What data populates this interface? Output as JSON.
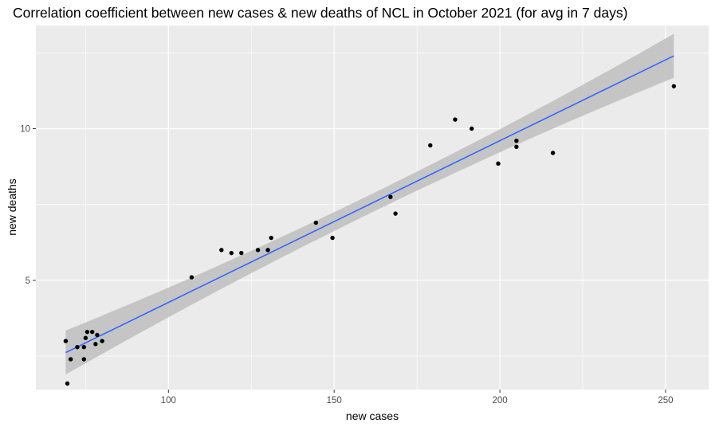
{
  "chart_data": {
    "type": "scatter",
    "title": "Correlation coefficient between new cases & new deaths of NCL in October 2021 (for avg in 7 days)",
    "xlabel": "new cases",
    "ylabel": "new deaths",
    "xlim": [
      60,
      263
    ],
    "ylim": [
      1.4,
      13.4
    ],
    "x_ticks": [
      100,
      150,
      200,
      250
    ],
    "y_ticks": [
      5,
      10
    ],
    "grid": true,
    "legend": "none",
    "colors": {
      "panel": "#ebebeb",
      "grid": "#ffffff",
      "points": "#000000",
      "fit_line": "#3366ff",
      "confidence_band": "#bebebe"
    },
    "points": [
      {
        "x": 69.0,
        "y": 3.0
      },
      {
        "x": 69.5,
        "y": 1.6
      },
      {
        "x": 70.5,
        "y": 2.4
      },
      {
        "x": 72.5,
        "y": 2.8
      },
      {
        "x": 74.5,
        "y": 2.8
      },
      {
        "x": 74.5,
        "y": 2.4
      },
      {
        "x": 75.0,
        "y": 3.1
      },
      {
        "x": 75.5,
        "y": 3.3
      },
      {
        "x": 77.0,
        "y": 3.3
      },
      {
        "x": 78.0,
        "y": 2.9
      },
      {
        "x": 78.5,
        "y": 3.2
      },
      {
        "x": 80.0,
        "y": 3.0
      },
      {
        "x": 107.0,
        "y": 5.1
      },
      {
        "x": 116.0,
        "y": 6.0
      },
      {
        "x": 119.0,
        "y": 5.9
      },
      {
        "x": 122.0,
        "y": 5.9
      },
      {
        "x": 127.0,
        "y": 6.0
      },
      {
        "x": 130.0,
        "y": 6.0
      },
      {
        "x": 131.0,
        "y": 6.4
      },
      {
        "x": 144.5,
        "y": 6.9
      },
      {
        "x": 149.5,
        "y": 6.4
      },
      {
        "x": 167.0,
        "y": 7.75
      },
      {
        "x": 168.5,
        "y": 7.2
      },
      {
        "x": 179.0,
        "y": 9.45
      },
      {
        "x": 186.5,
        "y": 10.3
      },
      {
        "x": 191.5,
        "y": 10.0
      },
      {
        "x": 199.5,
        "y": 8.85
      },
      {
        "x": 205.0,
        "y": 9.6
      },
      {
        "x": 205.0,
        "y": 9.4
      },
      {
        "x": 216.0,
        "y": 9.2
      },
      {
        "x": 252.5,
        "y": 11.4
      }
    ],
    "fit": {
      "x_range": [
        69,
        252.5
      ],
      "y_start": 2.62,
      "y_end": 12.4,
      "band_start": [
        1.95,
        3.4
      ],
      "band_end": [
        11.6,
        13.05
      ]
    }
  }
}
